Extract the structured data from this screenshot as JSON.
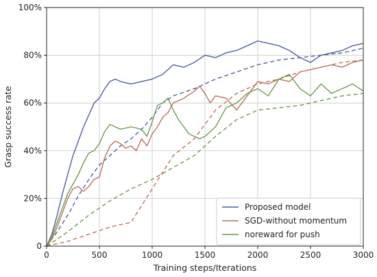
{
  "chart_data": {
    "type": "line",
    "title": "",
    "xlabel": "Training steps/Iterations",
    "ylabel": "Grasp success rate",
    "xlim": [
      0,
      3000
    ],
    "ylim": [
      0,
      100
    ],
    "xticks": [
      0,
      500,
      1000,
      1500,
      2000,
      2500,
      3000
    ],
    "xtick_labels": [
      "0",
      "500",
      "1000",
      "1500",
      "2000",
      "2500",
      "3000"
    ],
    "yticks": [
      0,
      20,
      40,
      60,
      80,
      100
    ],
    "ytick_labels": [
      "0",
      "20%",
      "40%",
      "60%",
      "80%",
      "100%"
    ],
    "grid": true,
    "legend_position": "bottom-right",
    "series": [
      {
        "name": "Proposed model",
        "color": "#4c5fa3",
        "style": "solid",
        "x": [
          0,
          50,
          100,
          150,
          200,
          250,
          300,
          350,
          400,
          450,
          500,
          550,
          600,
          650,
          700,
          800,
          900,
          1000,
          1100,
          1200,
          1300,
          1400,
          1500,
          1600,
          1700,
          1800,
          1900,
          2000,
          2100,
          2200,
          2300,
          2400,
          2500,
          2600,
          2700,
          2800,
          2900,
          3000
        ],
        "y": [
          0,
          5,
          13,
          22,
          30,
          38,
          44,
          50,
          55,
          60,
          62,
          66,
          69,
          70,
          69,
          68,
          69,
          70,
          72,
          76,
          75,
          77,
          80,
          79,
          81,
          82,
          84,
          86,
          85,
          84,
          82,
          79,
          77,
          80,
          81,
          82,
          84,
          85
        ]
      },
      {
        "name": "Proposed model",
        "legend": false,
        "color": "#4c5fa3",
        "style": "dashed",
        "x": [
          0,
          100,
          200,
          300,
          400,
          500,
          600,
          700,
          800,
          900,
          1000,
          1100,
          1200,
          1400,
          1600,
          1800,
          2000,
          2200,
          2400,
          2600,
          2800,
          3000
        ],
        "y": [
          0,
          6,
          13,
          21,
          28,
          34,
          38,
          42,
          45,
          49,
          54,
          60,
          63,
          66,
          70,
          73,
          76,
          78,
          79,
          80,
          81,
          83
        ]
      },
      {
        "name": "SGD-without momentum",
        "color": "#b8735a",
        "style": "solid",
        "x": [
          0,
          50,
          100,
          150,
          200,
          250,
          300,
          350,
          400,
          450,
          500,
          550,
          600,
          650,
          700,
          750,
          800,
          850,
          900,
          950,
          1000,
          1050,
          1100,
          1150,
          1200,
          1300,
          1400,
          1450,
          1500,
          1550,
          1600,
          1700,
          1800,
          1900,
          2000,
          2100,
          2200,
          2300,
          2400,
          2500,
          2600,
          2700,
          2800,
          2900,
          3000
        ],
        "y": [
          0,
          3,
          8,
          14,
          20,
          24,
          25,
          23,
          25,
          28,
          29,
          37,
          42,
          44,
          43,
          41,
          42,
          40,
          45,
          42,
          47,
          50,
          54,
          56,
          60,
          62,
          65,
          67,
          64,
          60,
          63,
          62,
          57,
          63,
          69,
          68,
          70,
          69,
          73,
          74,
          75,
          76,
          75,
          77,
          78
        ]
      },
      {
        "name": "SGD-without momentum",
        "legend": false,
        "color": "#b8735a",
        "style": "dashed",
        "x": [
          0,
          200,
          400,
          600,
          800,
          1000,
          1200,
          1400,
          1600,
          1800,
          2000,
          2200,
          2400,
          2600,
          2800,
          3000
        ],
        "y": [
          0,
          2,
          5,
          8,
          10,
          24,
          38,
          45,
          57,
          64,
          68,
          70,
          73,
          75,
          77,
          78
        ]
      },
      {
        "name": "noreward for push",
        "color": "#6b9a4e",
        "style": "solid",
        "x": [
          0,
          50,
          100,
          150,
          200,
          250,
          300,
          350,
          400,
          450,
          500,
          550,
          600,
          650,
          700,
          800,
          900,
          950,
          1000,
          1050,
          1100,
          1150,
          1200,
          1250,
          1300,
          1350,
          1400,
          1450,
          1500,
          1550,
          1600,
          1700,
          1800,
          1900,
          2000,
          2100,
          2200,
          2300,
          2400,
          2500,
          2600,
          2700,
          2800,
          2900,
          3000
        ],
        "y": [
          0,
          4,
          10,
          16,
          22,
          26,
          30,
          35,
          39,
          40,
          43,
          48,
          51,
          50,
          49,
          50,
          49,
          46,
          52,
          59,
          60,
          62,
          57,
          53,
          50,
          47,
          46,
          45,
          46,
          48,
          50,
          58,
          60,
          64,
          66,
          63,
          70,
          72,
          66,
          63,
          68,
          64,
          66,
          68,
          65
        ]
      },
      {
        "name": "noreward for push",
        "legend": false,
        "color": "#6b9a4e",
        "style": "dashed",
        "x": [
          0,
          200,
          400,
          600,
          800,
          1000,
          1200,
          1400,
          1600,
          1800,
          2000,
          2200,
          2400,
          2600,
          2800,
          3000
        ],
        "y": [
          0,
          6,
          13,
          19,
          24,
          28,
          33,
          38,
          46,
          53,
          57,
          58,
          59,
          61,
          63,
          64
        ]
      }
    ]
  }
}
